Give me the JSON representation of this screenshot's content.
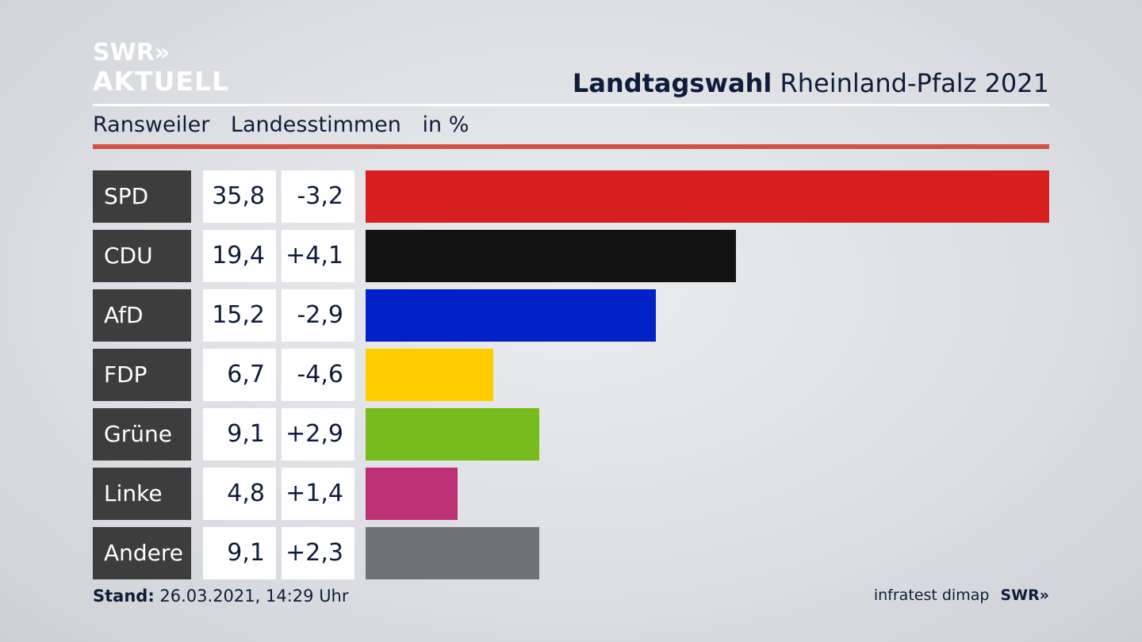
{
  "brand": {
    "logo_line1": "SWR»",
    "logo_line2": "AKTUELL",
    "footer_logo": "SWR»"
  },
  "header": {
    "title_bold": "Landtagswahl",
    "title_rest": "Rheinland-Pfalz 2021"
  },
  "subheader": {
    "place": "Ransweiler",
    "type": "Landesstimmen",
    "unit": "in %"
  },
  "colors": {
    "accent_rule": "#d0533f",
    "label_bg": "#3d3d3d"
  },
  "chart_data": {
    "type": "bar",
    "orientation": "horizontal",
    "categories": [
      "SPD",
      "CDU",
      "AfD",
      "FDP",
      "Grüne",
      "Linke",
      "Andere"
    ],
    "values": [
      35.8,
      19.4,
      15.2,
      6.7,
      9.1,
      4.8,
      9.1
    ],
    "value_labels": [
      "35,8",
      "19,4",
      "15,2",
      "6,7",
      "9,1",
      "4,8",
      "9,1"
    ],
    "changes": [
      -3.2,
      4.1,
      -2.9,
      -4.6,
      2.9,
      1.4,
      2.3
    ],
    "change_labels": [
      "-3,2",
      "+4,1",
      "-2,9",
      "-4,6",
      "+2,9",
      "+1,4",
      "+2,3"
    ],
    "colors": [
      "#d71f1f",
      "#121212",
      "#0020c8",
      "#ffcc00",
      "#78bb1c",
      "#bd3075",
      "#717274"
    ],
    "xlim": [
      0,
      35.8
    ]
  },
  "footer": {
    "stand_label": "Stand:",
    "stand_value": "26.03.2021, 14:29 Uhr",
    "source": "infratest dimap"
  }
}
